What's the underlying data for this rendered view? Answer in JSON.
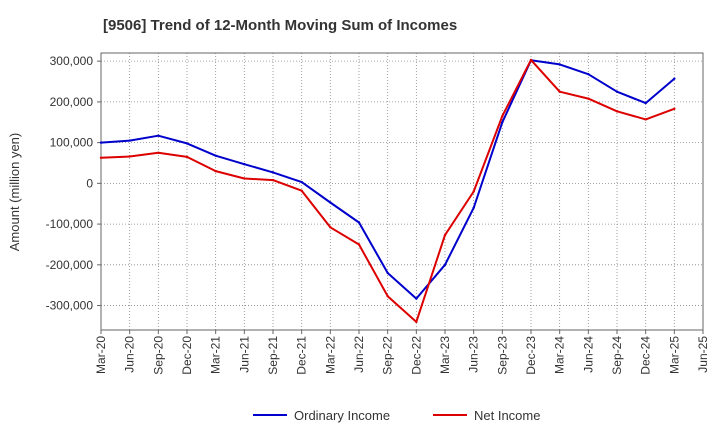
{
  "chart_data": {
    "type": "line",
    "title": "[9506]  Trend of 12-Month Moving Sum of Incomes",
    "ylabel": "Amount (million yen)",
    "xlabel": "",
    "ylim": [
      -360000,
      320000
    ],
    "yticks": [
      300000,
      200000,
      100000,
      0,
      -100000,
      -200000,
      -300000
    ],
    "ytick_labels": [
      "300,000",
      "200,000",
      "100,000",
      "0",
      "-100,000",
      "-200,000",
      "-300,000"
    ],
    "xtick_labels": [
      "Mar-20",
      "Jun-20",
      "Sep-20",
      "Dec-20",
      "Mar-21",
      "Jun-21",
      "Sep-21",
      "Dec-21",
      "Mar-22",
      "Jun-22",
      "Sep-22",
      "Dec-22",
      "Mar-23",
      "Jun-23",
      "Sep-23",
      "Dec-23",
      "Mar-24",
      "Jun-24",
      "Sep-24",
      "Dec-24",
      "Mar-25",
      "Jun-25"
    ],
    "grid": true,
    "legend_position": "bottom",
    "series": [
      {
        "name": "Ordinary Income",
        "color": "#0000cc",
        "values": [
          100000,
          105000,
          117000,
          98000,
          68000,
          47000,
          27000,
          3000,
          -47000,
          -96000,
          -220000,
          -283000,
          -200000,
          -60000,
          150000,
          302000,
          292000,
          268000,
          225000,
          197000,
          257000
        ]
      },
      {
        "name": "Net Income",
        "color": "#dd0000",
        "values": [
          63000,
          66000,
          75000,
          65000,
          30000,
          12000,
          8000,
          -18000,
          -108000,
          -150000,
          -277000,
          -340000,
          -127000,
          -20000,
          165000,
          303000,
          225000,
          208000,
          177000,
          157000,
          183000
        ]
      }
    ]
  }
}
